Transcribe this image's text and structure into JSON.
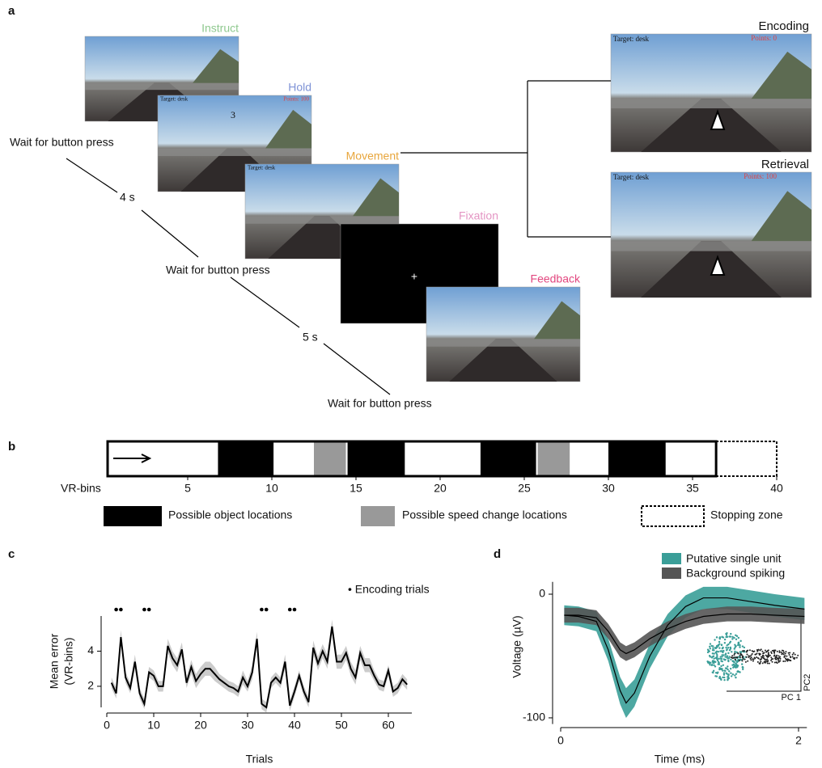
{
  "panel_a": {
    "label": "a",
    "stages": [
      {
        "name": "Instruct",
        "color": "#8fc98f"
      },
      {
        "name": "Hold",
        "color": "#7f93d6"
      },
      {
        "name": "Movement",
        "color": "#e8a63c"
      },
      {
        "name": "Fixation",
        "color": "#e495c3"
      },
      {
        "name": "Feedback",
        "color": "#e2477f"
      }
    ],
    "hold_count": "3",
    "fixation_cross": "+",
    "hold_target": "Target: desk",
    "hold_points": "Points: 100",
    "movement_target": "Target: desk",
    "encoding": {
      "title": "Encoding",
      "target": "Target: desk",
      "points": "Points: 0"
    },
    "retrieval": {
      "title": "Retrieval",
      "target": "Target: desk",
      "points": "Points: 100"
    },
    "wait_labels": [
      "Wait for button press",
      "Wait for button press",
      "Wait for button press"
    ],
    "intervals": [
      "4 s",
      "5 s"
    ]
  },
  "chart_data": [
    {
      "type": "track",
      "label": "b",
      "xlabel": "VR-bins",
      "xlim": [
        0,
        40
      ],
      "xticks": [
        5,
        10,
        15,
        20,
        25,
        30,
        35,
        40
      ],
      "track_end": 36.4,
      "object_locations": [
        [
          6.8,
          10.1
        ],
        [
          14.5,
          17.9
        ],
        [
          22.4,
          25.7
        ],
        [
          30.0,
          33.4
        ]
      ],
      "object_color": "#000000",
      "speed_change_locations": [
        [
          12.5,
          14.4
        ],
        [
          25.8,
          27.7
        ]
      ],
      "speed_color": "#999999",
      "legend": [
        "Possible object locations",
        "Possible speed change locations",
        "Stopping zone"
      ]
    },
    {
      "type": "line",
      "label": "c",
      "xlabel": "Trials",
      "ylabel": [
        "Mean error",
        "(VR-bins)"
      ],
      "xlim": [
        0,
        65
      ],
      "ylim": [
        0.8,
        6
      ],
      "xticks": [
        0,
        10,
        20,
        30,
        40,
        50,
        60
      ],
      "yticks": [
        2,
        4
      ],
      "color": "#000000",
      "band_color": "#cccccc",
      "legend": "• Encoding trials",
      "encoding_trials": [
        2,
        3,
        8,
        9,
        33,
        34,
        39,
        40
      ],
      "x": [
        1,
        2,
        3,
        4,
        5,
        6,
        7,
        8,
        9,
        10,
        11,
        12,
        13,
        14,
        15,
        16,
        17,
        18,
        19,
        20,
        21,
        22,
        23,
        24,
        25,
        26,
        27,
        28,
        29,
        30,
        31,
        32,
        33,
        34,
        35,
        36,
        37,
        38,
        39,
        40,
        41,
        42,
        43,
        44,
        45,
        46,
        47,
        48,
        49,
        50,
        51,
        52,
        53,
        54,
        55,
        56,
        57,
        58,
        59,
        60,
        61,
        62,
        63,
        64
      ],
      "values": [
        2.2,
        1.6,
        4.8,
        2.5,
        1.9,
        3.4,
        1.6,
        1.0,
        2.8,
        2.6,
        2.0,
        2.0,
        4.3,
        3.6,
        3.2,
        4.1,
        2.2,
        3.1,
        2.3,
        2.7,
        3.0,
        3.0,
        2.7,
        2.4,
        2.2,
        2.0,
        1.9,
        1.7,
        2.5,
        2.0,
        2.8,
        4.7,
        1.0,
        0.8,
        2.2,
        2.5,
        2.2,
        3.4,
        0.9,
        1.7,
        2.6,
        1.7,
        1.1,
        4.2,
        3.3,
        4.0,
        3.4,
        5.4,
        3.4,
        3.4,
        3.9,
        3.0,
        2.5,
        3.9,
        3.2,
        3.2,
        2.6,
        2.1,
        2.0,
        2.9,
        1.7,
        1.9,
        2.4,
        2.1
      ],
      "errors": [
        0.3,
        0.3,
        0.4,
        0.3,
        0.3,
        0.4,
        0.3,
        0.3,
        0.3,
        0.3,
        0.3,
        0.3,
        0.4,
        0.4,
        0.4,
        0.4,
        0.3,
        0.4,
        0.4,
        0.4,
        0.4,
        0.4,
        0.4,
        0.3,
        0.3,
        0.3,
        0.3,
        0.3,
        0.4,
        0.3,
        0.4,
        0.4,
        0.3,
        0.3,
        0.3,
        0.3,
        0.3,
        0.4,
        0.3,
        0.3,
        0.3,
        0.3,
        0.3,
        0.4,
        0.4,
        0.4,
        0.4,
        0.4,
        0.4,
        0.4,
        0.4,
        0.4,
        0.4,
        0.4,
        0.4,
        0.4,
        0.3,
        0.3,
        0.3,
        0.3,
        0.3,
        0.3,
        0.3,
        0.3
      ]
    },
    {
      "type": "waveform",
      "label": "d",
      "xlabel": "Time (ms)",
      "ylabel": "Voltage (µV)",
      "xlim": [
        0,
        2.07
      ],
      "ylim": [
        -105,
        10
      ],
      "xticks": [
        0,
        2
      ],
      "yticks": [
        0,
        -100
      ],
      "inset_x": "PC 1",
      "inset_y": "PC2",
      "x": [
        0.03,
        0.15,
        0.3,
        0.4,
        0.5,
        0.55,
        0.62,
        0.75,
        0.9,
        1.05,
        1.2,
        1.4,
        1.6,
        1.8,
        2.05
      ],
      "series": [
        {
          "name": "Putative single unit",
          "color": "#3a9e98",
          "values": [
            -17,
            -18,
            -22,
            -45,
            -78,
            -88,
            -80,
            -50,
            -25,
            -10,
            -3,
            -3,
            -6,
            -9,
            -12
          ],
          "errors": [
            8,
            8,
            8,
            9,
            11,
            12,
            11,
            10,
            9,
            9,
            9,
            9,
            9,
            9,
            9
          ]
        },
        {
          "name": "Background spiking",
          "color": "#555555",
          "values": [
            -17,
            -17,
            -19,
            -30,
            -45,
            -48,
            -45,
            -36,
            -28,
            -22,
            -18,
            -16,
            -16,
            -17,
            -18
          ],
          "errors": [
            6,
            6,
            6,
            6,
            6,
            6,
            6,
            6,
            6,
            6,
            6,
            6,
            6,
            6,
            6
          ]
        }
      ]
    }
  ]
}
